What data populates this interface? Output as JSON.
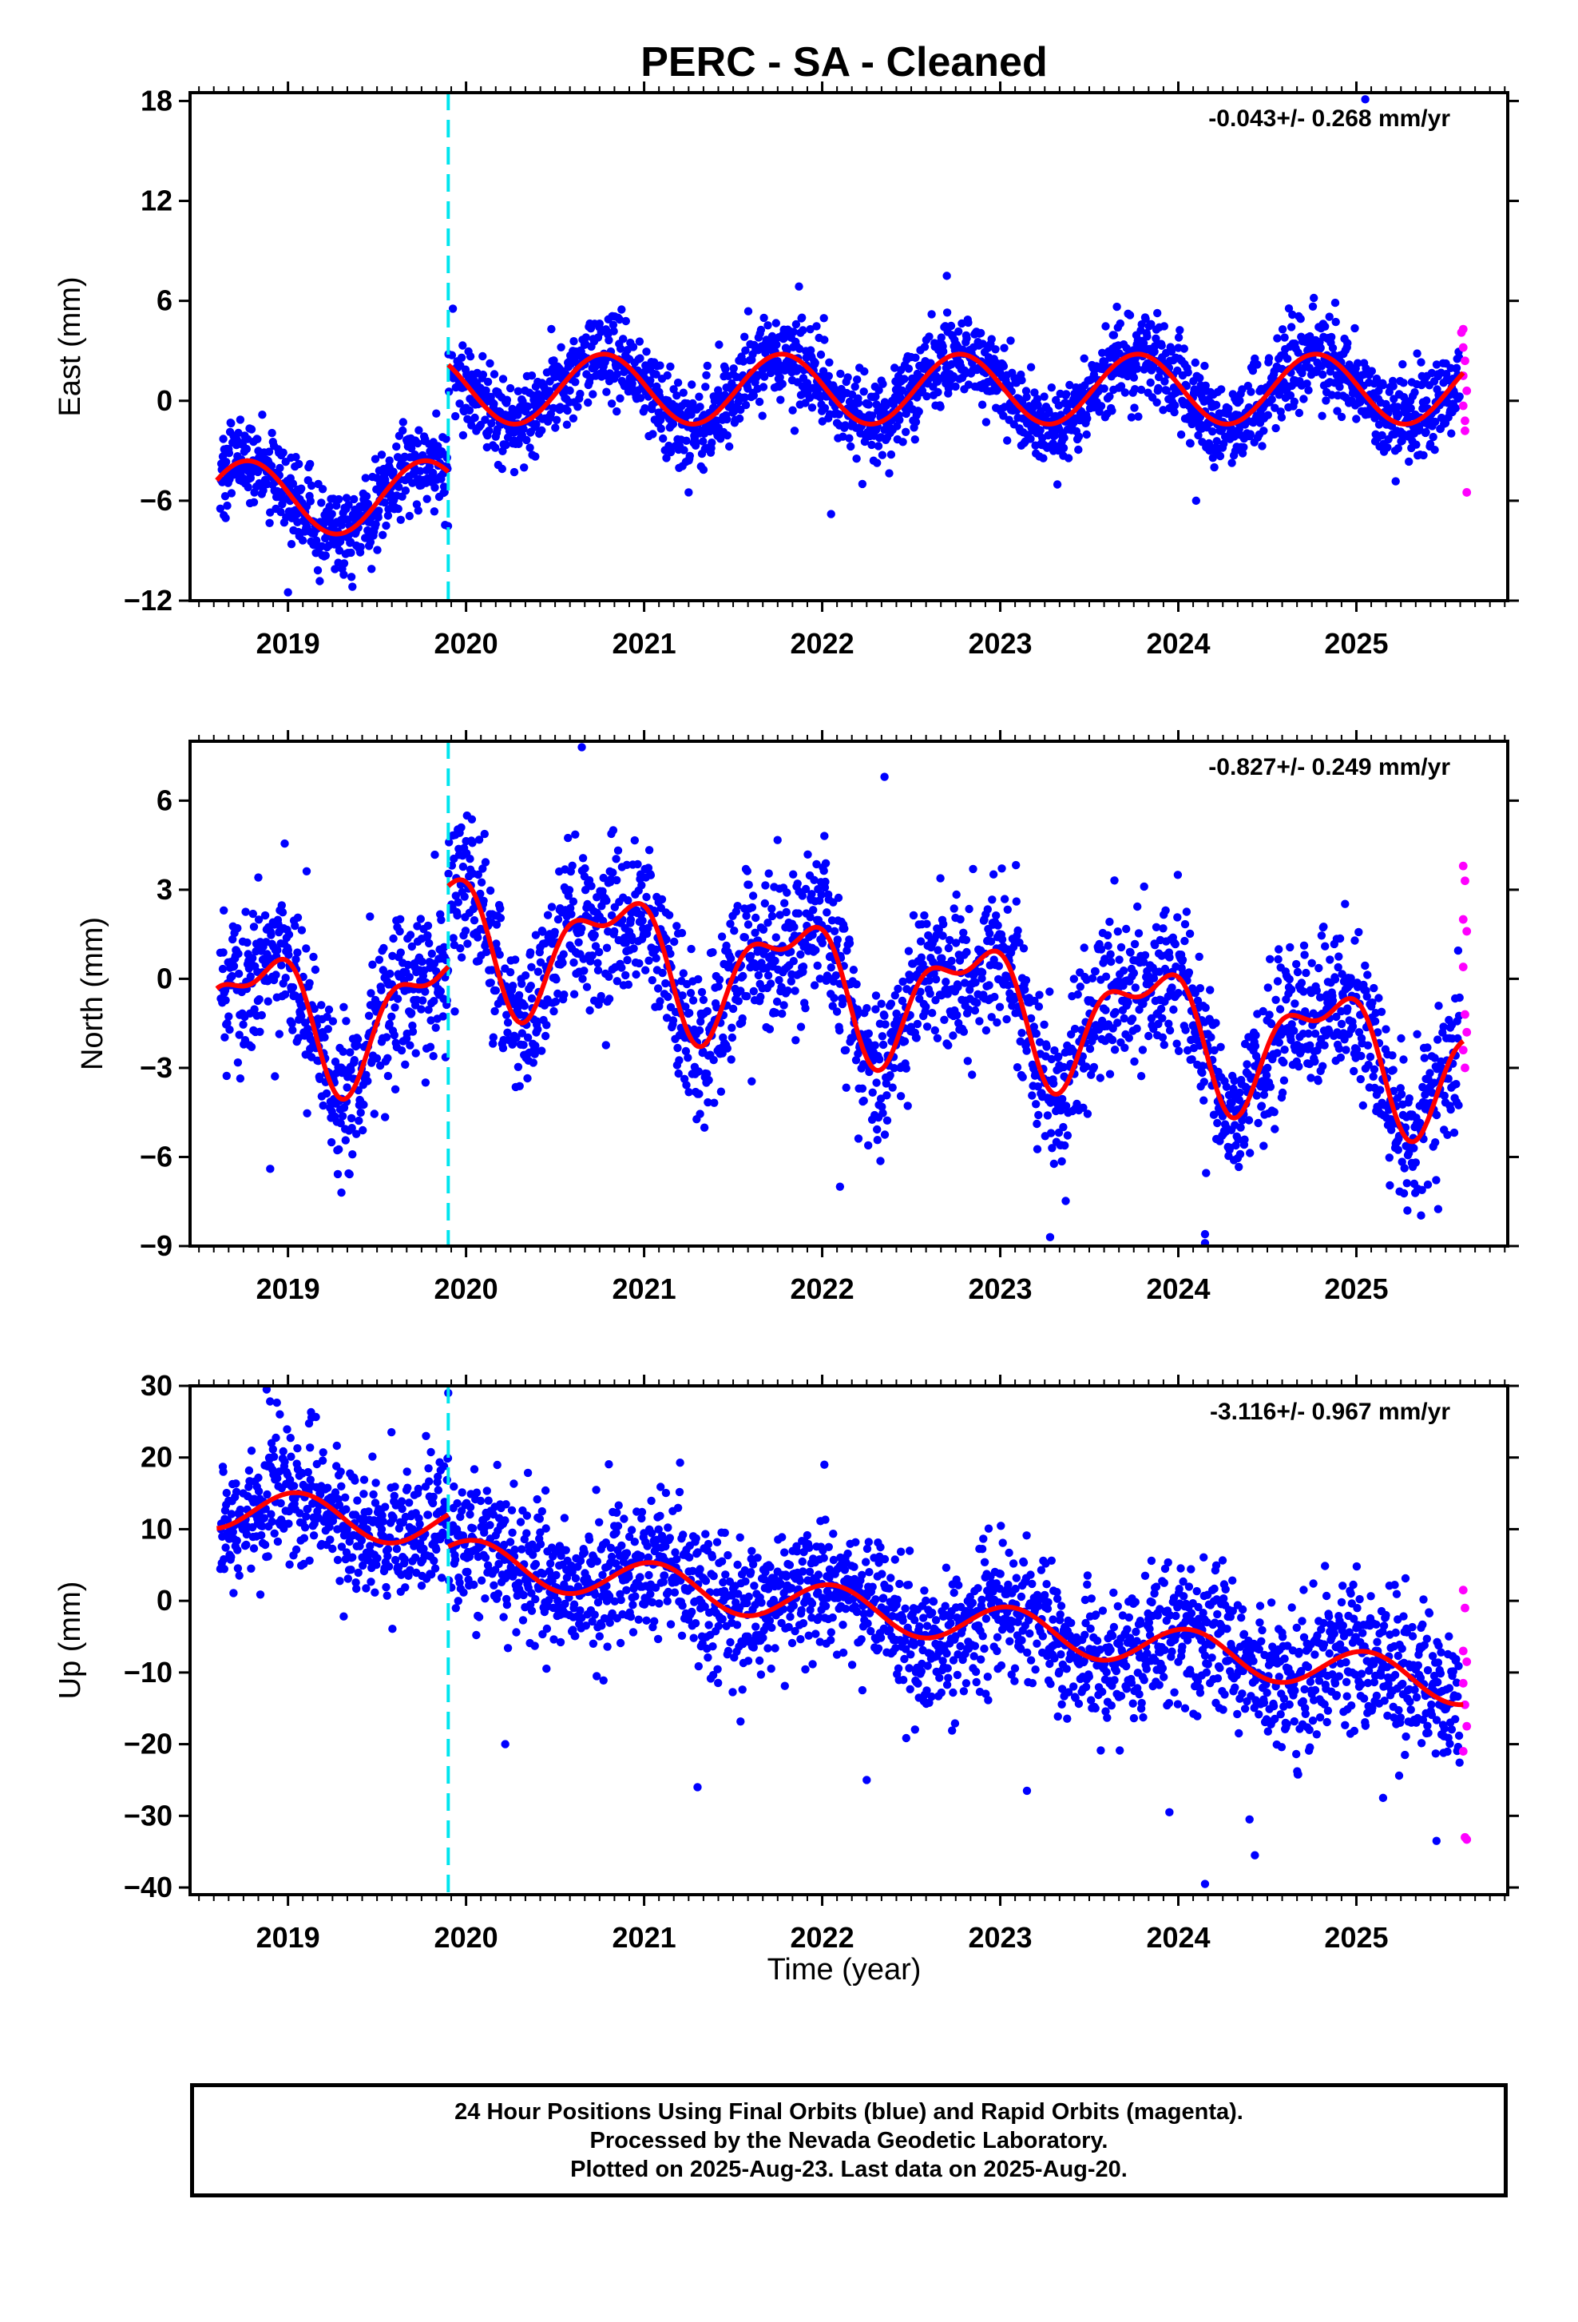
{
  "title": "PERC  - SA - Cleaned",
  "xlabel": "Time (year)",
  "footer": {
    "line1": "24 Hour Positions Using Final Orbits (blue) and Rapid Orbits (magenta).",
    "line2": "Processed by the Nevada Geodetic Laboratory.",
    "line3": "Plotted on 2025-Aug-23. Last data on 2025-Aug-20."
  },
  "colors": {
    "final_orbits": "#0000ff",
    "rapid_orbits": "#ff00ff",
    "model": "#ff0000",
    "equipment_change": "#00e5ee"
  },
  "chart_data": [
    {
      "type": "scatter",
      "ylabel": "East (mm)",
      "rate": "-0.043+/- 0.268 mm/yr",
      "xlim": [
        2018.45,
        2025.85
      ],
      "ylim": [
        -12,
        18.5
      ],
      "yticks": [
        -12,
        -6,
        0,
        6,
        12,
        18
      ],
      "xticks": [
        2019,
        2020,
        2021,
        2022,
        2023,
        2024,
        2025
      ],
      "discontinuity": 2019.9,
      "model": {
        "pre": {
          "x0": 2018.6,
          "x1": 2019.9,
          "offset": -5.8,
          "slope": 0.0,
          "amp": 2.2,
          "phase": 3.0,
          "amp2": 0.0,
          "phase2": 0.0
        },
        "post": {
          "x0": 2019.9,
          "x1": 2025.6,
          "offset": 0.7,
          "slope": 0.0,
          "amp": 2.1,
          "phase": 3.0,
          "amp2": 0.0,
          "phase2": 0.0
        }
      },
      "scatter_noise": 1.3,
      "rapid_points": [
        [
          2025.59,
          4.1
        ],
        [
          2025.6,
          3.2
        ],
        [
          2025.61,
          2.4
        ],
        [
          2025.6,
          1.5
        ],
        [
          2025.62,
          0.6
        ],
        [
          2025.6,
          -0.3
        ],
        [
          2025.61,
          -1.2
        ],
        [
          2025.62,
          -5.5
        ],
        [
          2025.6,
          4.3
        ],
        [
          2025.61,
          -1.8
        ]
      ],
      "outliers": [
        [
          2025.05,
          18.1
        ],
        [
          2022.7,
          7.5
        ],
        [
          2021.25,
          -5.5
        ],
        [
          2022.05,
          -6.8
        ],
        [
          2024.1,
          -6.0
        ],
        [
          2019.0,
          -11.5
        ]
      ]
    },
    {
      "type": "scatter",
      "ylabel": "North (mm)",
      "rate": "-0.827+/- 0.249 mm/yr",
      "xlim": [
        2018.45,
        2025.85
      ],
      "ylim": [
        -9,
        8
      ],
      "yticks": [
        -9,
        -6,
        -3,
        0,
        3,
        6
      ],
      "xticks": [
        2019,
        2020,
        2021,
        2022,
        2023,
        2024,
        2025
      ],
      "discontinuity": 2019.9,
      "model": {
        "pre": {
          "x0": 2018.6,
          "x1": 2019.9,
          "offset": -1.2,
          "slope": 0.0,
          "amp": 2.0,
          "phase": 2.6,
          "amp2": 0.9,
          "phase2": 1.0
        },
        "post": {
          "x0": 2019.9,
          "x1": 2025.6,
          "offset": 1.6,
          "slope": -0.8,
          "amp": 1.9,
          "phase": 2.6,
          "amp2": 0.9,
          "phase2": 1.0
        }
      },
      "scatter_noise": 1.3,
      "rapid_points": [
        [
          2025.6,
          3.8
        ],
        [
          2025.61,
          3.3
        ],
        [
          2025.6,
          2.0
        ],
        [
          2025.62,
          1.6
        ],
        [
          2025.6,
          0.4
        ],
        [
          2025.61,
          -1.2
        ],
        [
          2025.62,
          -1.8
        ],
        [
          2025.6,
          -2.4
        ],
        [
          2025.61,
          -3.0
        ]
      ],
      "outliers": [
        [
          2022.35,
          6.8
        ],
        [
          2020.65,
          7.8
        ],
        [
          2022.1,
          -7.0
        ],
        [
          2023.28,
          -8.7
        ],
        [
          2024.15,
          -8.6
        ],
        [
          2024.15,
          -8.9
        ],
        [
          2018.9,
          -6.4
        ],
        [
          2019.3,
          -7.2
        ]
      ]
    },
    {
      "type": "scatter",
      "ylabel": "Up (mm)",
      "rate": "-3.116+/- 0.967 mm/yr",
      "xlim": [
        2018.45,
        2025.85
      ],
      "ylim": [
        -41,
        30
      ],
      "yticks": [
        -40,
        -30,
        -20,
        -10,
        0,
        10,
        20,
        30
      ],
      "xticks": [
        2019,
        2020,
        2021,
        2022,
        2023,
        2024,
        2025
      ],
      "discontinuity": 2019.9,
      "model": {
        "pre": {
          "x0": 2018.6,
          "x1": 2019.9,
          "offset": 13.0,
          "slope": -2.0,
          "amp": 3.0,
          "phase": 1.2,
          "amp2": 0.0,
          "phase2": 0.0
        },
        "post": {
          "x0": 2019.9,
          "x1": 2025.6,
          "offset": 6.0,
          "slope": -3.1,
          "amp": 2.9,
          "phase": 1.2,
          "amp2": 0.0,
          "phase2": 0.0
        }
      },
      "scatter_noise": 4.8,
      "rapid_points": [
        [
          2025.6,
          1.5
        ],
        [
          2025.61,
          -1.0
        ],
        [
          2025.6,
          -7.0
        ],
        [
          2025.62,
          -8.5
        ],
        [
          2025.6,
          -11.5
        ],
        [
          2025.61,
          -14.5
        ],
        [
          2025.62,
          -17.5
        ],
        [
          2025.6,
          -21.0
        ],
        [
          2025.61,
          -33.0
        ],
        [
          2025.62,
          -33.3
        ]
      ],
      "outliers": [
        [
          2019.9,
          29.0
        ],
        [
          2020.22,
          -20.0
        ],
        [
          2021.3,
          -26.0
        ],
        [
          2022.25,
          -25.0
        ],
        [
          2023.15,
          -26.5
        ],
        [
          2023.95,
          -29.5
        ],
        [
          2024.15,
          -39.5
        ],
        [
          2024.4,
          -30.5
        ],
        [
          2024.43,
          -35.5
        ],
        [
          2025.15,
          -27.5
        ],
        [
          2025.45,
          -33.5
        ]
      ]
    }
  ]
}
